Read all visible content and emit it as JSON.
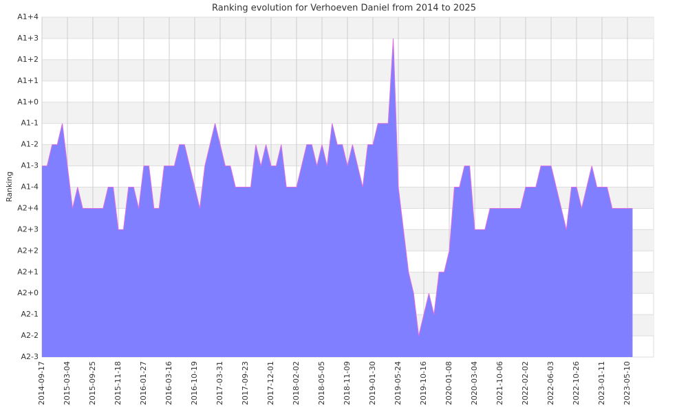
{
  "chart_data": {
    "type": "area",
    "title": "Ranking evolution for Verhoeven Daniel from 2014 to 2025",
    "y_label": "Ranking",
    "categories": [
      "2014-09-17",
      null,
      null,
      null,
      null,
      "2015-03-04",
      null,
      null,
      null,
      null,
      "2015-09-25",
      null,
      null,
      null,
      null,
      "2015-11-18",
      null,
      null,
      null,
      null,
      "2016-01-27",
      null,
      null,
      null,
      null,
      "2016-03-16",
      null,
      null,
      null,
      null,
      "2016-10-19",
      null,
      null,
      null,
      null,
      "2017-03-31",
      null,
      null,
      null,
      null,
      "2017-09-23",
      null,
      null,
      null,
      null,
      "2017-12-01",
      null,
      null,
      null,
      null,
      "2018-02-02",
      null,
      null,
      null,
      null,
      "2018-05-05",
      null,
      null,
      null,
      null,
      "2018-11-09",
      null,
      null,
      null,
      null,
      "2019-01-30",
      null,
      null,
      null,
      null,
      "2019-05-24",
      null,
      null,
      null,
      null,
      "2019-10-16",
      null,
      null,
      null,
      null,
      "2020-01-08",
      null,
      null,
      null,
      null,
      "2020-03-04",
      null,
      null,
      null,
      null,
      "2021-10-06",
      null,
      null,
      null,
      null,
      "2022-02-02",
      null,
      null,
      null,
      null,
      "2022-06-03",
      null,
      null,
      null,
      null,
      "2022-10-26",
      null,
      null,
      null,
      null,
      "2023-01-11",
      null,
      null,
      null,
      null,
      "2023-05-10",
      null
    ],
    "series": [
      {
        "name": "Ranking",
        "color": "#7f7fff",
        "line_color": "#e070e0",
        "values": [
          9,
          9,
          10,
          10,
          11,
          9,
          7,
          8,
          7,
          7,
          7,
          7,
          7,
          8,
          8,
          6,
          6,
          8,
          8,
          7,
          9,
          9,
          7,
          7,
          9,
          9,
          9,
          10,
          10,
          9,
          8,
          7,
          9,
          10,
          11,
          10,
          9,
          9,
          8,
          8,
          8,
          8,
          10,
          9,
          10,
          9,
          9,
          10,
          8,
          8,
          8,
          9,
          10,
          10,
          9,
          10,
          9,
          11,
          10,
          10,
          9,
          10,
          9,
          8,
          10,
          10,
          11,
          11,
          11,
          15,
          8,
          6,
          4,
          3,
          1,
          2,
          3,
          2,
          4,
          4,
          5,
          8,
          8,
          9,
          9,
          6,
          6,
          6,
          7,
          7,
          7,
          7,
          7,
          7,
          7,
          8,
          8,
          8,
          9,
          9,
          9,
          8,
          7,
          6,
          8,
          8,
          7,
          8,
          9,
          8,
          8,
          8,
          7,
          7,
          7,
          7,
          7
        ]
      }
    ],
    "ylim": [
      0,
      16
    ],
    "yticks": [
      {
        "value": 0,
        "label": "A2-3"
      },
      {
        "value": 1,
        "label": "A2-2"
      },
      {
        "value": 2,
        "label": "A2-1"
      },
      {
        "value": 3,
        "label": "A2+0"
      },
      {
        "value": 4,
        "label": "A2+1"
      },
      {
        "value": 5,
        "label": "A2+2"
      },
      {
        "value": 6,
        "label": "A2+3"
      },
      {
        "value": 7,
        "label": "A2+4"
      },
      {
        "value": 8,
        "label": "A1-4"
      },
      {
        "value": 9,
        "label": "A1-3"
      },
      {
        "value": 10,
        "label": "A1-2"
      },
      {
        "value": 11,
        "label": "A1-1"
      },
      {
        "value": 12,
        "label": "A1+0"
      },
      {
        "value": 13,
        "label": "A1+1"
      },
      {
        "value": 14,
        "label": "A1+2"
      },
      {
        "value": 15,
        "label": "A1+3"
      },
      {
        "value": 16,
        "label": "A1+4"
      }
    ],
    "grid": true
  }
}
